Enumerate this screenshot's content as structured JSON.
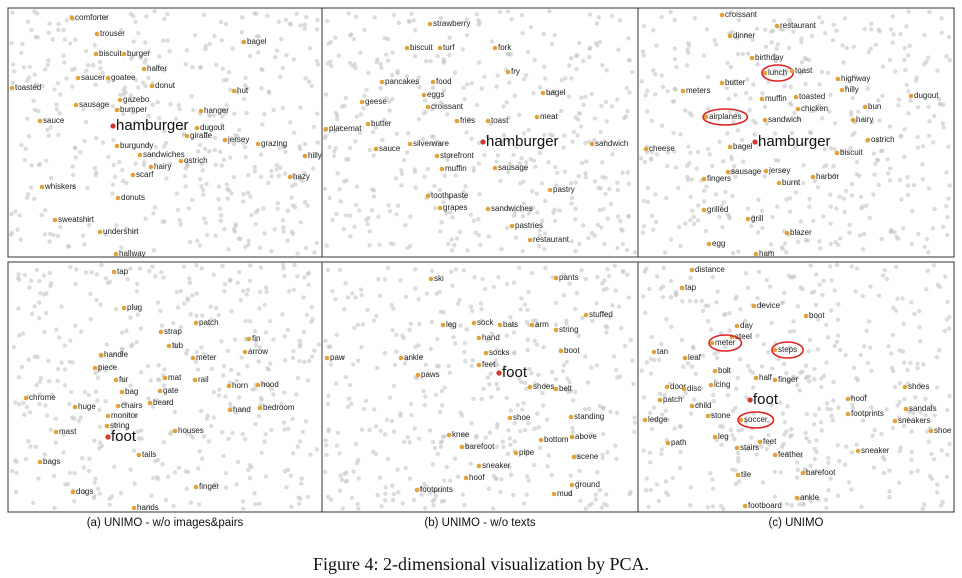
{
  "panels": [
    {
      "center": "hamburger",
      "words": [
        "comforter",
        "trouser",
        "biscuit",
        "burger",
        "bagel",
        "halter",
        "saucer",
        "goatee",
        "donut",
        "toasted",
        "hut",
        "gazebo",
        "sausage",
        "bumper",
        "hanger",
        "sauce",
        "dugout",
        "giraffe",
        "jersey",
        "grazing",
        "burgundy",
        "sandwiches",
        "hilly",
        "ostrich",
        "hairy",
        "scarf",
        "hazy",
        "whiskers",
        "donuts",
        "sweatshirt",
        "undershirt",
        "hallway"
      ]
    },
    {
      "center": "hamburger",
      "words": [
        "strawberry",
        "biscuit",
        "turf",
        "fork",
        "fry",
        "pancakes",
        "food",
        "bagel",
        "eggs",
        "geese",
        "croissant",
        "meat",
        "butter",
        "fries",
        "toast",
        "placemat",
        "sandwich",
        "sauce",
        "silverware",
        "storefront",
        "muffin",
        "sausage",
        "pastry",
        "toothpaste",
        "grapes",
        "sandwiches",
        "pastries",
        "restaurant"
      ]
    },
    {
      "center": "hamburger",
      "words": [
        "croissant",
        "restaurant",
        "dinner",
        "birthday",
        "lunch",
        "toast",
        "highway",
        "butter",
        "meters",
        "toasted",
        "hilly",
        "muffin",
        "dugout",
        "chicken",
        "bun",
        "airplanes",
        "sandwich",
        "hairy",
        "ostrich",
        "cheese",
        "bagel",
        "biscuit",
        "sausage",
        "jersey",
        "fingers",
        "burnt",
        "harbor",
        "grilled",
        "grill",
        "blazer",
        "egg",
        "ham"
      ]
    },
    {
      "center": "foot",
      "words": [
        "tap",
        "plug",
        "strap",
        "patch",
        "tub",
        "fin",
        "handle",
        "meter",
        "arrow",
        "piece",
        "fur",
        "mat",
        "rail",
        "bag",
        "gate",
        "horn",
        "hood",
        "chrome",
        "beard",
        "huge",
        "chairs",
        "bedroom",
        "hand",
        "monitor",
        "string",
        "mast",
        "houses",
        "tails",
        "bags",
        "finger",
        "dogs",
        "hands"
      ]
    },
    {
      "center": "foot",
      "words": [
        "ski",
        "pants",
        "stuffed",
        "leg",
        "sock",
        "bats",
        "arm",
        "string",
        "hand",
        "paw",
        "ankle",
        "socks",
        "boot",
        "feet",
        "paws",
        "shoes",
        "belt",
        "shoe",
        "standing",
        "bottom",
        "above",
        "knee",
        "barefoot",
        "pipe",
        "scene",
        "sneaker",
        "hoof",
        "ground",
        "footprints",
        "mud"
      ]
    },
    {
      "center": "foot",
      "words": [
        "distance",
        "tap",
        "device",
        "boot",
        "day",
        "steel",
        "meter",
        "steps",
        "tan",
        "leaf",
        "bolt",
        "half",
        "finger",
        "door",
        "disc",
        "icing",
        "shoes",
        "patch",
        "hoof",
        "child",
        "sandals",
        "footprints",
        "stone",
        "soccer",
        "sneakers",
        "ledge",
        "shoe",
        "leg",
        "feet",
        "path",
        "stairs",
        "sneaker",
        "feather",
        "barefoot",
        "tile",
        "ankle",
        "footboard"
      ]
    }
  ],
  "subcaptions": [
    "(a) UNIMO - w/o images&pairs",
    "(b) UNIMO - w/o texts",
    "(c) UNIMO"
  ],
  "caption": "Figure 4: 2-dimensional visualization by PCA."
}
